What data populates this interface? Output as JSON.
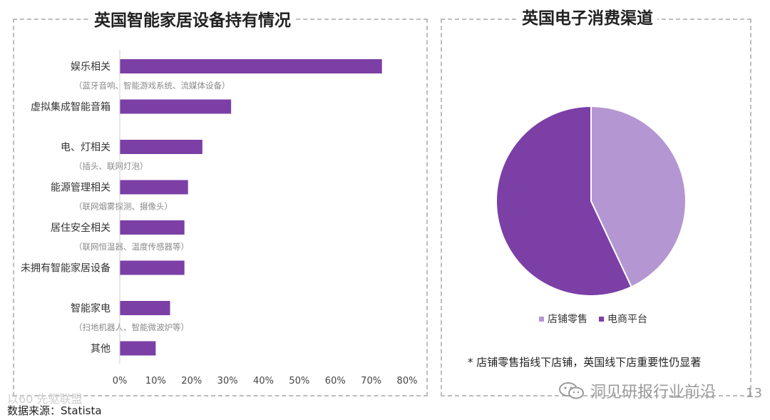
{
  "left_title": "英国智能家居设备持有情况",
  "right_title": "英国电子消费渠道",
  "note": "* 店铺零售指线下店铺，英国线下店重要性仍显著",
  "source": "数据来源：Statista",
  "source_overlay": "以60 先驱联盟",
  "watermark": "洞见研报行业前沿",
  "page_number": "13",
  "colors": {
    "bar": "#7b3fa6",
    "pie_dark": "#7b3fa6",
    "pie_light": "#b497d2",
    "dashed_border": "#bdbdbd"
  },
  "chart_data": [
    {
      "type": "bar",
      "orientation": "horizontal",
      "title": "英国智能家居设备持有情况",
      "categories": [
        {
          "label": "娱乐相关",
          "sublabel": "（蓝牙音响、智能游戏系统、流媒体设备）",
          "value": 73
        },
        {
          "label": "虚拟集成智能音箱",
          "sublabel": "",
          "value": 31
        },
        {
          "label": "电、灯相关",
          "sublabel": "（插头、联网灯泡）",
          "value": 23
        },
        {
          "label": "能源管理相关",
          "sublabel": "（联网烟雾探测、摄像头）",
          "value": 19
        },
        {
          "label": "居住安全相关",
          "sublabel": "（联网恒温器、温度传感器等）",
          "value": 18
        },
        {
          "label": "未拥有智能家居设备",
          "sublabel": "",
          "value": 18
        },
        {
          "label": "智能家电",
          "sublabel": "（扫地机器人、智能微波炉等）",
          "value": 14
        },
        {
          "label": "其他",
          "sublabel": "",
          "value": 10
        }
      ],
      "xlim": [
        0,
        80
      ],
      "xticks": [
        "0%",
        "10%",
        "20%",
        "30%",
        "40%",
        "50%",
        "60%",
        "70%",
        "80%"
      ],
      "grid": false
    },
    {
      "type": "pie",
      "title": "英国电子消费渠道",
      "slices": [
        {
          "label": "店铺零售",
          "value": 43,
          "color": "#b497d2"
        },
        {
          "label": "电商平台",
          "value": 57,
          "color": "#7b3fa6"
        }
      ],
      "legend": "bottom"
    }
  ]
}
